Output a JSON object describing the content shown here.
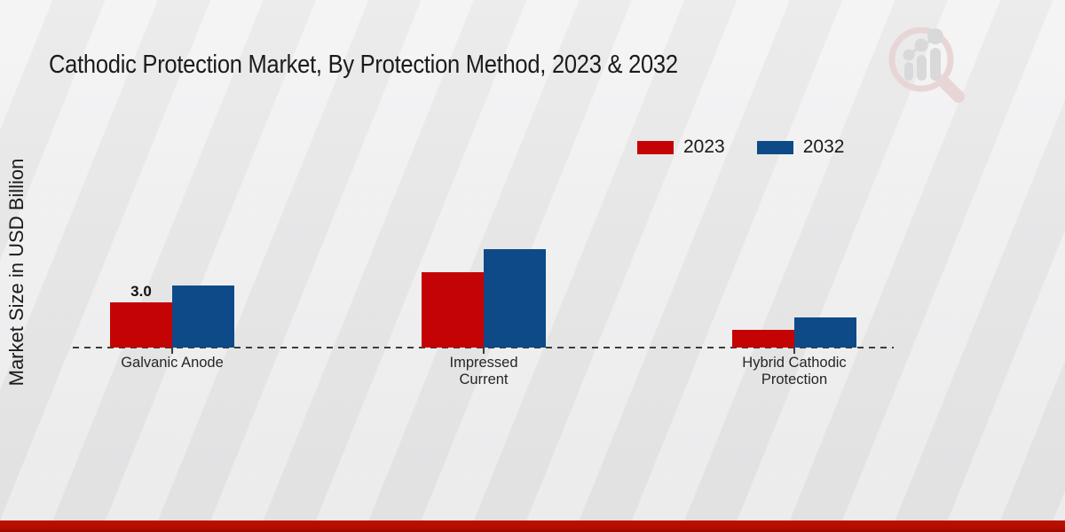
{
  "page": {
    "title": "Cathodic Protection Market, By Protection Method, 2023 & 2032",
    "y_axis_label": "Market Size in USD Billion"
  },
  "colors": {
    "series_2023": "#c40404",
    "series_2032": "#0d4a87",
    "baseline": "#3c3c3c",
    "footer_strip": "#b30c00",
    "background": "#ebebec"
  },
  "watermark_icon": "magnifier-bar-chart-logo",
  "chart_data": {
    "type": "bar",
    "title": "Cathodic Protection Market, By Protection Method, 2023 & 2032",
    "categories": [
      "Galvanic Anode",
      "Impressed Current",
      "Hybrid Cathodic Protection"
    ],
    "series": [
      {
        "name": "2023",
        "color": "#c40404",
        "values": [
          3.0,
          5.0,
          1.2
        ]
      },
      {
        "name": "2032",
        "color": "#0d4a87",
        "values": [
          4.1,
          6.5,
          2.0
        ]
      }
    ],
    "xlabel": "",
    "ylabel": "Market Size in USD Billion",
    "ylim": [
      0,
      7
    ],
    "grid": false,
    "axis_style": "dashed zero baseline only, no y-axis ticks",
    "legend_position": "top-right",
    "data_labels": [
      {
        "series_index": 0,
        "category_index": 0,
        "text": "3.0"
      }
    ]
  }
}
